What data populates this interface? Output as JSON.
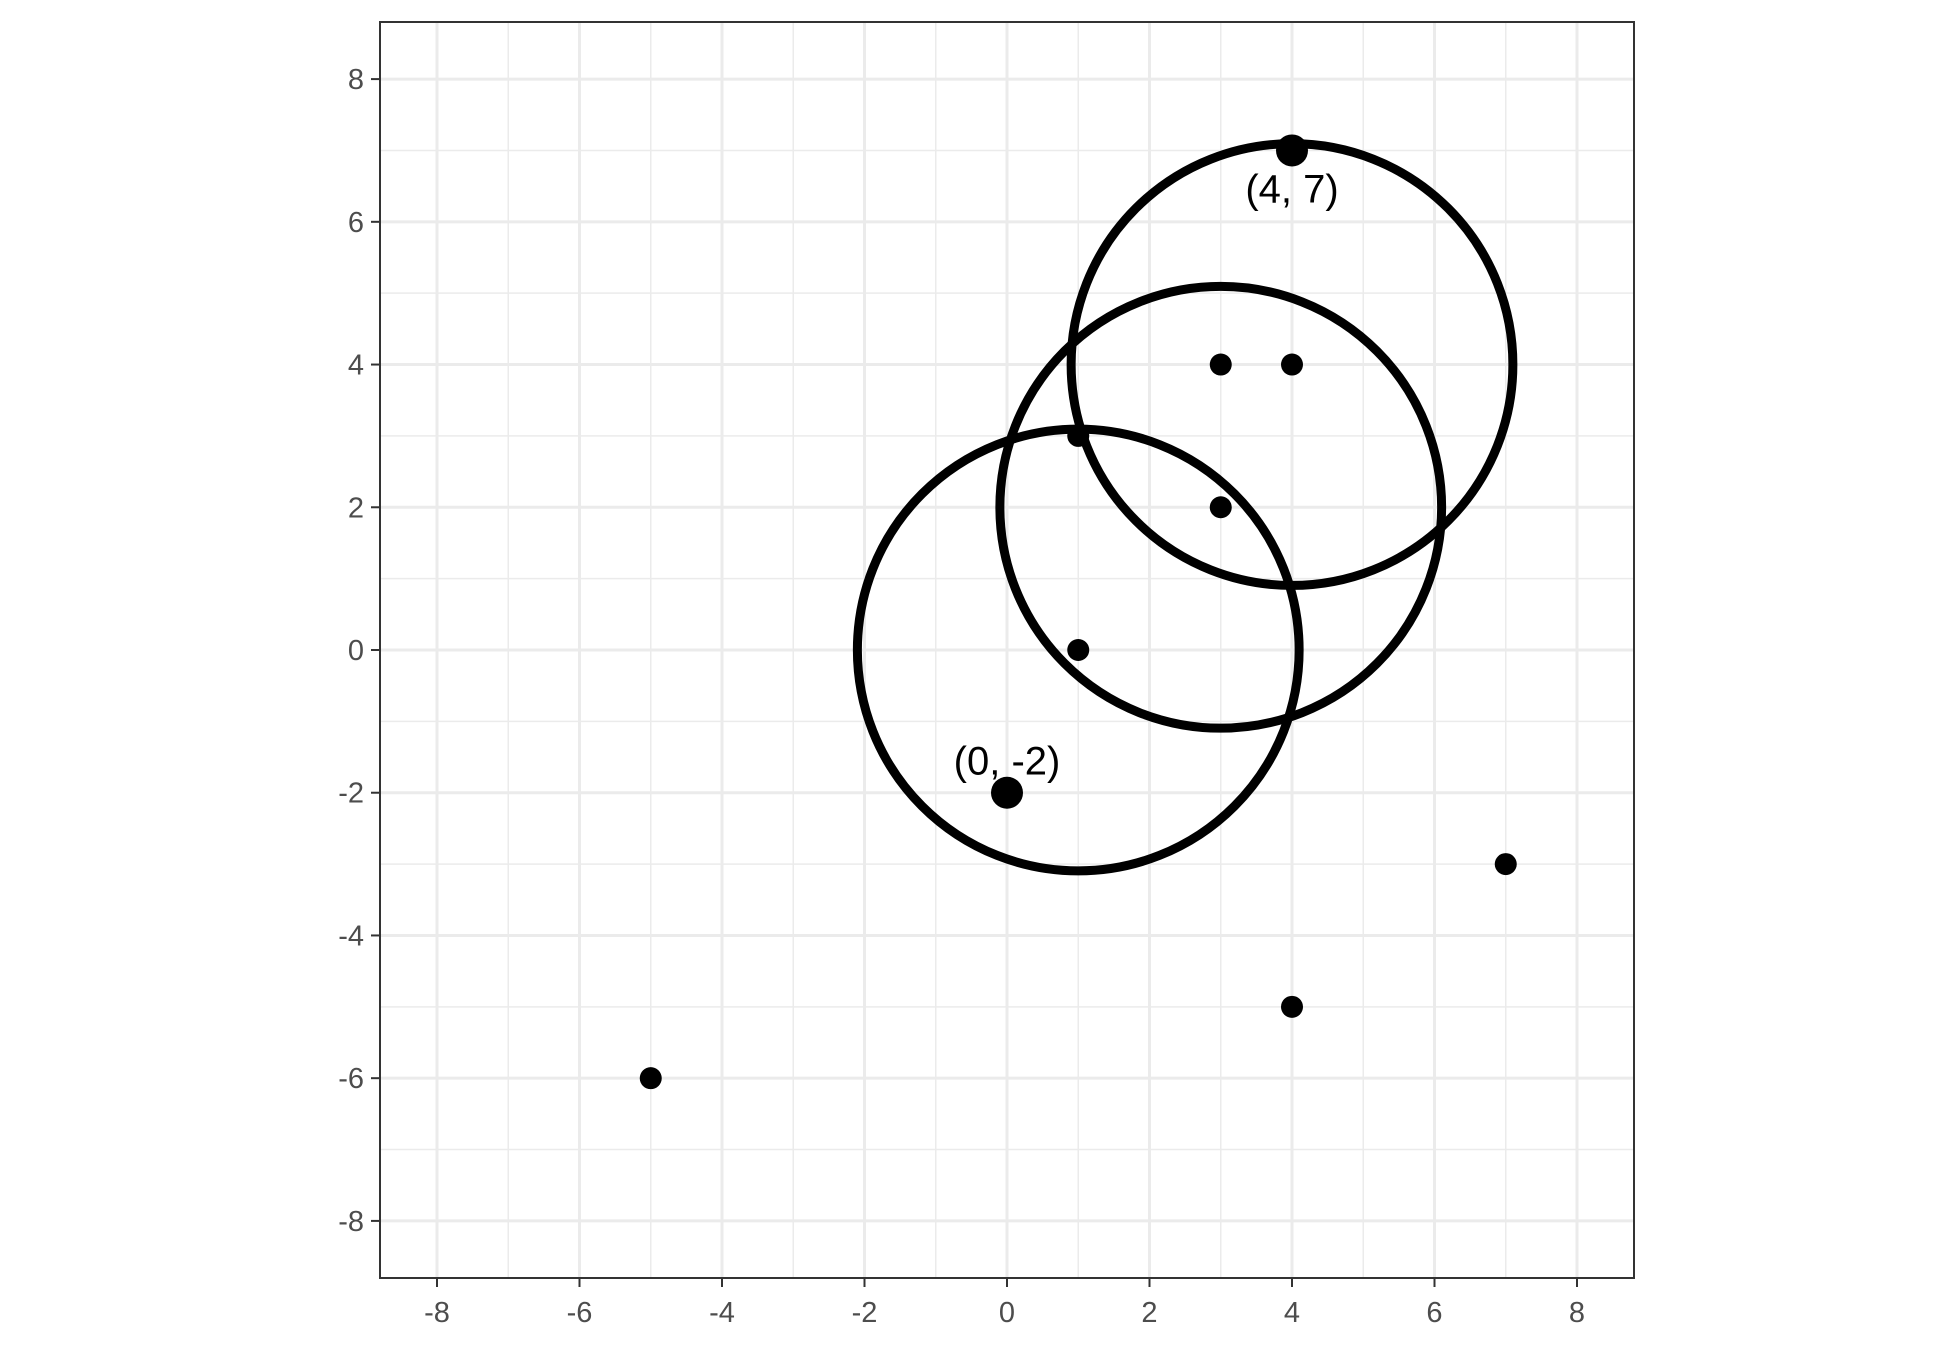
{
  "chart_data": {
    "type": "scatter",
    "title": "",
    "xlabel": "",
    "ylabel": "",
    "xlim": [
      -8.8,
      8.8
    ],
    "ylim": [
      -8.8,
      8.8
    ],
    "x_ticks": [
      -8,
      -6,
      -4,
      -2,
      0,
      2,
      4,
      6,
      8
    ],
    "y_ticks": [
      -8,
      -6,
      -4,
      -2,
      0,
      2,
      4,
      6,
      8
    ],
    "x_tick_labels": [
      "-8",
      "-6",
      "-4",
      "-2",
      "0",
      "2",
      "4",
      "6",
      "8"
    ],
    "y_tick_labels": [
      "-8",
      "-6",
      "-4",
      "-2",
      "0",
      "2",
      "4",
      "6",
      "8"
    ],
    "grid": true,
    "legend": "none",
    "points": [
      {
        "x": 3,
        "y": 4
      },
      {
        "x": 4,
        "y": 4
      },
      {
        "x": 1,
        "y": 3
      },
      {
        "x": 3,
        "y": 2
      },
      {
        "x": 1,
        "y": 0
      },
      {
        "x": 7,
        "y": -3
      },
      {
        "x": 4,
        "y": -5
      },
      {
        "x": -5,
        "y": -6
      }
    ],
    "highlighted_points": [
      {
        "x": 4,
        "y": 7,
        "label": "(4, 7)"
      },
      {
        "x": 0,
        "y": -2,
        "label": "(0, -2)"
      }
    ],
    "circles": [
      {
        "cx": 4,
        "cy": 4,
        "r": 3.1
      },
      {
        "cx": 3,
        "cy": 2,
        "r": 3.1
      },
      {
        "cx": 1,
        "cy": 0,
        "r": 3.1
      }
    ],
    "colors": {
      "points": "#000000",
      "circles": "#000000",
      "grid": "#ebebeb",
      "panel_border": "#333333"
    }
  }
}
